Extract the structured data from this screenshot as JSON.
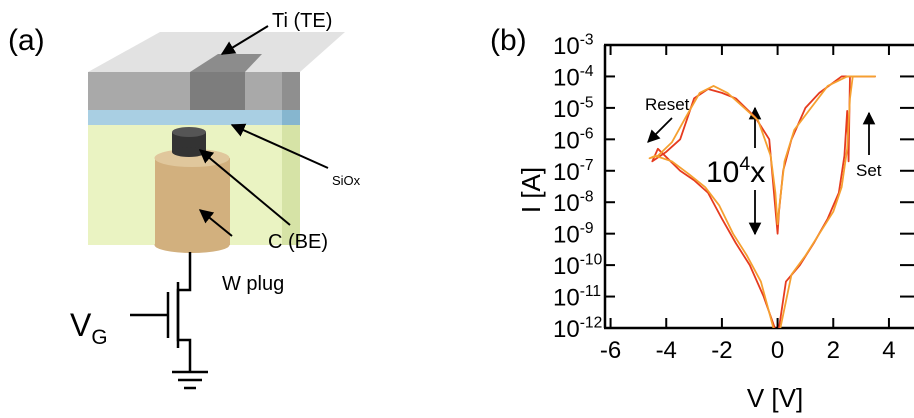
{
  "panel_a": {
    "label": "(a)",
    "top_electrode": "Ti (TE)",
    "oxide": "SiOx",
    "bottom_electrode": "C (BE)",
    "plug": "W plug",
    "gate": "VG"
  },
  "chart_data": {
    "type": "line",
    "panel_label": "(b)",
    "x_label": "V [V]",
    "y_label": "I [A]",
    "log_y": true,
    "grid": false,
    "xlim": [
      -6.2,
      4.9
    ],
    "xticks": [
      -6,
      -4,
      -2,
      0,
      2,
      4
    ],
    "ylim": [
      1e-12,
      0.001
    ],
    "yticks": [
      {
        "value": 0.001,
        "label": "10-3"
      },
      {
        "value": 0.0001,
        "label": "10-4"
      },
      {
        "value": 1e-05,
        "label": "10-5"
      },
      {
        "value": 1e-06,
        "label": "10-6"
      },
      {
        "value": 1e-07,
        "label": "10-7"
      },
      {
        "value": 1e-08,
        "label": "10-8"
      },
      {
        "value": 1e-09,
        "label": "10-9"
      },
      {
        "value": 1e-10,
        "label": "10-10"
      },
      {
        "value": 1e-11,
        "label": "10-11"
      },
      {
        "value": 1e-12,
        "label": "10-12"
      }
    ],
    "annotations": [
      "Reset",
      "104x",
      "Set"
    ],
    "series": [
      {
        "color": "#e63b1f",
        "x": [
          0.05,
          0.3,
          0.8,
          1.3,
          1.8,
          2.2,
          2.4,
          2.5,
          2.55,
          2.6,
          3.5,
          2.3,
          1.5,
          1.0,
          0.5,
          0.2,
          0.05,
          0,
          -0.1,
          -0.3,
          -0.8,
          -1.5,
          -2.0,
          -2.5,
          -3.0,
          -3.5,
          -4.0,
          -4.5,
          -4.3,
          -3.5,
          -3.0,
          -2.5,
          -2.0,
          -1.5,
          -1.0,
          -0.5,
          -0.1
        ],
        "values": [
          1e-12,
          3e-11,
          1e-10,
          5e-10,
          3e-09,
          2e-08,
          3e-07,
          8e-06,
          2e-07,
          0.0001,
          0.0001,
          0.0001,
          3e-05,
          1e-05,
          1e-06,
          1e-07,
          5e-09,
          1e-09,
          1e-08,
          1e-06,
          5e-06,
          2e-05,
          3e-05,
          4e-05,
          2e-05,
          1e-06,
          4e-07,
          2e-07,
          5e-07,
          1e-07,
          5e-08,
          2e-08,
          3e-09,
          5e-10,
          1e-10,
          1e-11,
          1e-12
        ]
      },
      {
        "color": "#f5a030",
        "x": [
          0.1,
          0.5,
          1.0,
          1.5,
          2.0,
          2.3,
          2.5,
          2.6,
          2.7,
          3.5,
          2.5,
          1.8,
          1.2,
          0.6,
          0.25,
          0.08,
          0,
          -0.08,
          -0.25,
          -0.7,
          -1.2,
          -1.8,
          -2.3,
          -2.8,
          -3.3,
          -3.8,
          -4.3,
          -4.6,
          -4.4,
          -3.8,
          -3.2,
          -2.6,
          -2.1,
          -1.6,
          -1.1,
          -0.6,
          -0.15
        ],
        "values": [
          1e-12,
          5e-11,
          2e-10,
          1e-09,
          5e-09,
          3e-08,
          5e-07,
          2e-05,
          0.0001,
          0.0001,
          0.0001,
          5e-05,
          1e-05,
          2e-06,
          2e-07,
          1e-08,
          2e-09,
          2e-08,
          3e-07,
          4e-06,
          1e-05,
          3e-05,
          5e-05,
          3e-05,
          5e-06,
          8e-07,
          3e-07,
          2.5e-07,
          3e-07,
          2e-07,
          8e-08,
          3e-08,
          8e-09,
          1e-09,
          2e-10,
          3e-11,
          1e-12
        ]
      }
    ]
  }
}
